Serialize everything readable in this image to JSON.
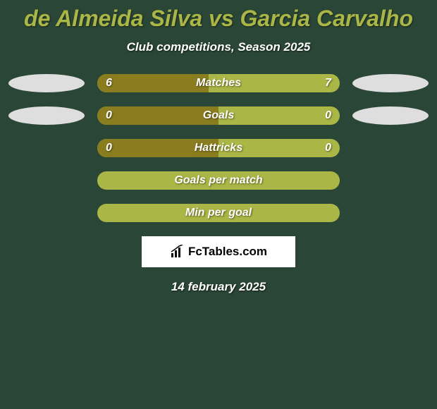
{
  "title": "de Almeida Silva vs Garcia Carvalho",
  "subtitle": "Club competitions, Season 2025",
  "date": "14 february 2025",
  "logo": {
    "text": "FcTables.com"
  },
  "colors": {
    "background": "#2a4636",
    "accent": "#aab645",
    "bar_dark": "#8a7d1f",
    "oval": "#dedede",
    "text": "#ffffff"
  },
  "rows": [
    {
      "label": "Matches",
      "left": "6",
      "right": "7",
      "leftPct": 46,
      "ovalLeft": true,
      "ovalRight": true,
      "bg": "#aab645",
      "leftBg": "#8a7d1f"
    },
    {
      "label": "Goals",
      "left": "0",
      "right": "0",
      "leftPct": 50,
      "ovalLeft": true,
      "ovalRight": true,
      "bg": "#aab645",
      "leftBg": "#8a7d1f"
    },
    {
      "label": "Hattricks",
      "left": "0",
      "right": "0",
      "leftPct": 50,
      "ovalLeft": false,
      "ovalRight": false,
      "bg": "#aab645",
      "leftBg": "#8a7d1f"
    },
    {
      "label": "Goals per match",
      "left": "",
      "right": "",
      "leftPct": 0,
      "ovalLeft": false,
      "ovalRight": false,
      "bg": "#aab645",
      "leftBg": "#aab645"
    },
    {
      "label": "Min per goal",
      "left": "",
      "right": "",
      "leftPct": 0,
      "ovalLeft": false,
      "ovalRight": false,
      "bg": "#aab645",
      "leftBg": "#aab645"
    }
  ]
}
